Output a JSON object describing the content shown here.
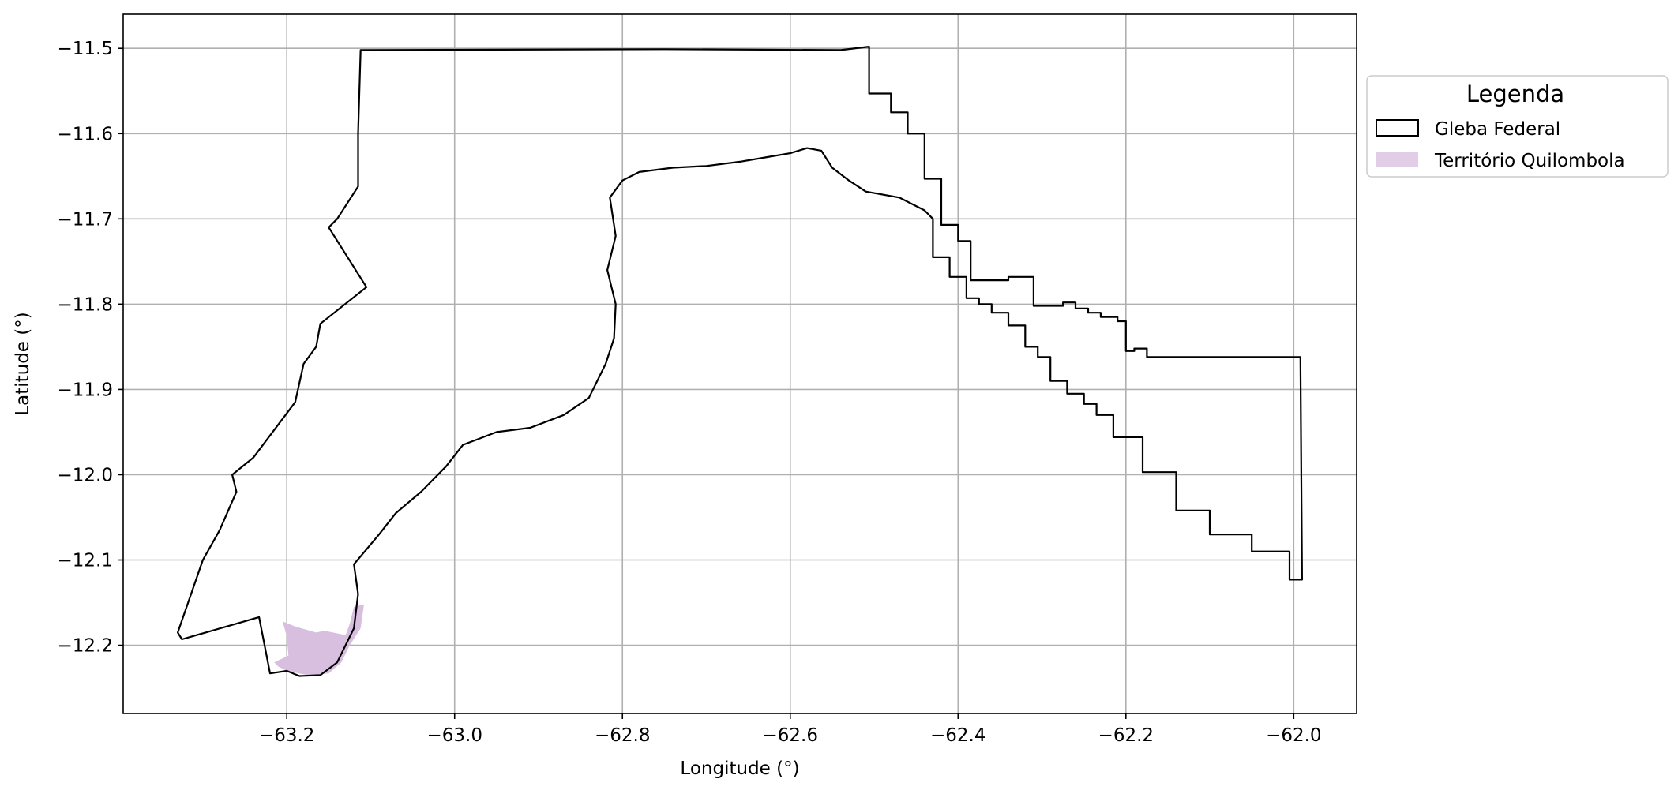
{
  "chart_data": {
    "type": "map",
    "xlabel": "Longitude (°)",
    "ylabel": "Latitude (°)",
    "xlim": [
      -63.395,
      -61.925
    ],
    "ylim": [
      -12.28,
      -11.46
    ],
    "xticks": [
      -63.2,
      -63.0,
      -62.8,
      -62.6,
      -62.4,
      -62.2,
      -62.0
    ],
    "yticks": [
      -11.5,
      -11.6,
      -11.7,
      -11.8,
      -11.9,
      -12.0,
      -12.1,
      -12.2
    ],
    "xtick_labels": [
      "−63.2",
      "−63.0",
      "−62.8",
      "−62.6",
      "−62.4",
      "−62.2",
      "−62.0"
    ],
    "ytick_labels": [
      "−11.5",
      "−11.6",
      "−11.7",
      "−11.8",
      "−11.9",
      "−12.0",
      "−12.1",
      "−12.2"
    ],
    "grid": true,
    "legend": {
      "title": "Legenda",
      "placement": "outside-upper-right",
      "entries": [
        {
          "label": "Gleba Federal",
          "style": "outline",
          "edge_color": "#000000",
          "fill": "none"
        },
        {
          "label": "Território Quilombola",
          "style": "filled",
          "fill": "#d8bfdf"
        }
      ]
    },
    "layers": [
      {
        "name": "Gleba Federal",
        "edge_color": "#000000",
        "fill": "none",
        "polygons": [
          [
            [
              -63.112,
              -11.502
            ],
            [
              -62.75,
              -11.501
            ],
            [
              -62.54,
              -11.502
            ],
            [
              -62.506,
              -11.498
            ],
            [
              -62.506,
              -11.553
            ],
            [
              -62.48,
              -11.553
            ],
            [
              -62.48,
              -11.575
            ],
            [
              -62.46,
              -11.575
            ],
            [
              -62.46,
              -11.6
            ],
            [
              -62.44,
              -11.6
            ],
            [
              -62.44,
              -11.653
            ],
            [
              -62.42,
              -11.653
            ],
            [
              -62.42,
              -11.707
            ],
            [
              -62.4,
              -11.707
            ],
            [
              -62.4,
              -11.726
            ],
            [
              -62.385,
              -11.726
            ],
            [
              -62.385,
              -11.772
            ],
            [
              -62.34,
              -11.772
            ],
            [
              -62.34,
              -11.768
            ],
            [
              -62.31,
              -11.768
            ],
            [
              -62.31,
              -11.802
            ],
            [
              -62.275,
              -11.802
            ],
            [
              -62.275,
              -11.798
            ],
            [
              -62.26,
              -11.798
            ],
            [
              -62.26,
              -11.805
            ],
            [
              -62.245,
              -11.805
            ],
            [
              -62.245,
              -11.81
            ],
            [
              -62.23,
              -11.81
            ],
            [
              -62.23,
              -11.815
            ],
            [
              -62.21,
              -11.815
            ],
            [
              -62.21,
              -11.82
            ],
            [
              -62.2,
              -11.82
            ],
            [
              -62.2,
              -11.855
            ],
            [
              -62.19,
              -11.855
            ],
            [
              -62.19,
              -11.852
            ],
            [
              -62.175,
              -11.852
            ],
            [
              -62.175,
              -11.862
            ],
            [
              -62.0,
              -11.862
            ],
            [
              -61.992,
              -11.862
            ],
            [
              -61.99,
              -12.123
            ],
            [
              -62.005,
              -12.123
            ],
            [
              -62.005,
              -12.09
            ],
            [
              -62.05,
              -12.09
            ],
            [
              -62.05,
              -12.07
            ],
            [
              -62.1,
              -12.07
            ],
            [
              -62.1,
              -12.042
            ],
            [
              -62.14,
              -12.042
            ],
            [
              -62.14,
              -11.997
            ],
            [
              -62.18,
              -11.997
            ],
            [
              -62.18,
              -11.956
            ],
            [
              -62.215,
              -11.956
            ],
            [
              -62.215,
              -11.93
            ],
            [
              -62.235,
              -11.93
            ],
            [
              -62.235,
              -11.917
            ],
            [
              -62.25,
              -11.917
            ],
            [
              -62.25,
              -11.905
            ],
            [
              -62.27,
              -11.905
            ],
            [
              -62.27,
              -11.89
            ],
            [
              -62.29,
              -11.89
            ],
            [
              -62.29,
              -11.862
            ],
            [
              -62.305,
              -11.862
            ],
            [
              -62.305,
              -11.85
            ],
            [
              -62.32,
              -11.85
            ],
            [
              -62.32,
              -11.825
            ],
            [
              -62.34,
              -11.825
            ],
            [
              -62.34,
              -11.81
            ],
            [
              -62.36,
              -11.81
            ],
            [
              -62.36,
              -11.8
            ],
            [
              -62.375,
              -11.8
            ],
            [
              -62.375,
              -11.793
            ],
            [
              -62.39,
              -11.793
            ],
            [
              -62.39,
              -11.768
            ],
            [
              -62.41,
              -11.768
            ],
            [
              -62.41,
              -11.745
            ],
            [
              -62.43,
              -11.745
            ],
            [
              -62.43,
              -11.7
            ],
            [
              -62.44,
              -11.69
            ],
            [
              -62.47,
              -11.675
            ],
            [
              -62.51,
              -11.668
            ],
            [
              -62.53,
              -11.655
            ],
            [
              -62.55,
              -11.64
            ],
            [
              -62.563,
              -11.62
            ],
            [
              -62.58,
              -11.617
            ],
            [
              -62.6,
              -11.623
            ],
            [
              -62.63,
              -11.628
            ],
            [
              -62.66,
              -11.633
            ],
            [
              -62.7,
              -11.638
            ],
            [
              -62.74,
              -11.64
            ],
            [
              -62.78,
              -11.645
            ],
            [
              -62.8,
              -11.655
            ],
            [
              -62.815,
              -11.675
            ],
            [
              -62.808,
              -11.72
            ],
            [
              -62.818,
              -11.76
            ],
            [
              -62.808,
              -11.8
            ],
            [
              -62.81,
              -11.84
            ],
            [
              -62.82,
              -11.87
            ],
            [
              -62.84,
              -11.91
            ],
            [
              -62.87,
              -11.93
            ],
            [
              -62.91,
              -11.945
            ],
            [
              -62.95,
              -11.95
            ],
            [
              -62.99,
              -11.965
            ],
            [
              -63.01,
              -11.99
            ],
            [
              -63.04,
              -12.02
            ],
            [
              -63.07,
              -12.045
            ],
            [
              -63.09,
              -12.07
            ],
            [
              -63.12,
              -12.105
            ],
            [
              -63.115,
              -12.14
            ],
            [
              -63.12,
              -12.18
            ],
            [
              -63.14,
              -12.22
            ],
            [
              -63.16,
              -12.235
            ],
            [
              -63.185,
              -12.236
            ],
            [
              -63.2,
              -12.23
            ],
            [
              -63.22,
              -12.233
            ],
            [
              -63.233,
              -12.167
            ],
            [
              -63.325,
              -12.193
            ],
            [
              -63.33,
              -12.185
            ],
            [
              -63.3,
              -12.1
            ],
            [
              -63.28,
              -12.065
            ],
            [
              -63.26,
              -12.02
            ],
            [
              -63.265,
              -12.0
            ],
            [
              -63.24,
              -11.98
            ],
            [
              -63.19,
              -11.915
            ],
            [
              -63.18,
              -11.87
            ],
            [
              -63.165,
              -11.85
            ],
            [
              -63.16,
              -11.823
            ],
            [
              -63.105,
              -11.78
            ],
            [
              -63.15,
              -11.71
            ],
            [
              -63.14,
              -11.7
            ],
            [
              -63.115,
              -11.662
            ],
            [
              -63.115,
              -11.6
            ],
            [
              -63.112,
              -11.502
            ]
          ]
        ]
      },
      {
        "name": "Território Quilombola",
        "fill": "#d8bfdf",
        "polygons": [
          [
            [
              -63.205,
              -12.172
            ],
            [
              -63.19,
              -12.178
            ],
            [
              -63.165,
              -12.185
            ],
            [
              -63.155,
              -12.183
            ],
            [
              -63.13,
              -12.188
            ],
            [
              -63.125,
              -12.175
            ],
            [
              -63.12,
              -12.155
            ],
            [
              -63.108,
              -12.152
            ],
            [
              -63.112,
              -12.18
            ],
            [
              -63.125,
              -12.2
            ],
            [
              -63.135,
              -12.22
            ],
            [
              -63.15,
              -12.233
            ],
            [
              -63.175,
              -12.235
            ],
            [
              -63.2,
              -12.23
            ],
            [
              -63.21,
              -12.225
            ],
            [
              -63.215,
              -12.22
            ],
            [
              -63.198,
              -12.212
            ],
            [
              -63.2,
              -12.19
            ],
            [
              -63.205,
              -12.172
            ]
          ]
        ]
      }
    ]
  }
}
